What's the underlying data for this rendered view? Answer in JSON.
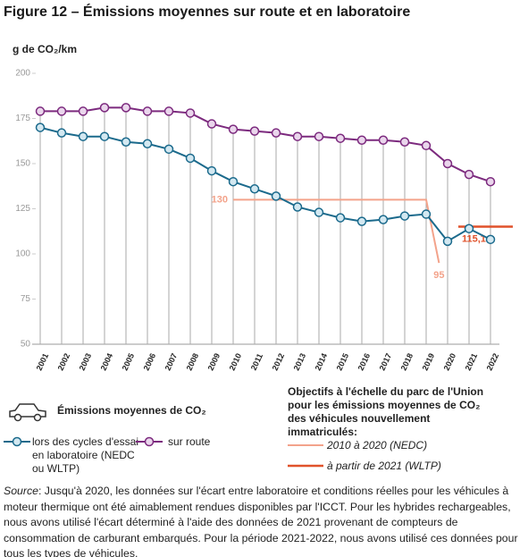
{
  "chart_data": {
    "type": "line",
    "title": "Figure 12 – Émissions moyennes sur route et en laboratoire",
    "y_label": "g de CO₂/km",
    "ylim": [
      50,
      200
    ],
    "yticks": [
      50,
      75,
      100,
      125,
      150,
      175,
      200
    ],
    "categories": [
      "2001",
      "2002",
      "2003",
      "2004",
      "2005",
      "2006",
      "2007",
      "2008",
      "2009",
      "2010",
      "2011",
      "2012",
      "2013",
      "2014",
      "2015",
      "2016",
      "2017",
      "2018",
      "2019",
      "2020",
      "2021",
      "2022"
    ],
    "legend_title": "Émissions moyennes de CO₂",
    "series": [
      {
        "name": "lors des cycles d'essai en laboratoire (NEDC ou WLTP)",
        "color": "#1b6a8c",
        "marker_fill": "#d3e8f1",
        "values": [
          170,
          167,
          165,
          165,
          162,
          161,
          158,
          153,
          146,
          140,
          136,
          132,
          126,
          123,
          120,
          118,
          119,
          121,
          122,
          107,
          114,
          108
        ]
      },
      {
        "name": "sur route",
        "color": "#7c2a7e",
        "marker_fill": "#ead6ec",
        "values": [
          179,
          179,
          179,
          181,
          181,
          179,
          179,
          178,
          172,
          169,
          168,
          167,
          165,
          165,
          164,
          163,
          163,
          162,
          160,
          150,
          144,
          140
        ]
      }
    ],
    "targets_title": "Objectifs à l'échelle du parc de l'Union pour les émissions moyennes de CO₂ des véhicules nouvellement immatriculés:",
    "targets": [
      {
        "name": "2010 à 2020 (NEDC)",
        "color": "#f3a38b",
        "from": "2010",
        "to": "2019",
        "values": [
          130,
          95
        ],
        "value_labels": [
          "130",
          "95"
        ]
      },
      {
        "name": "à partir de 2021 (WLTP)",
        "color": "#e0522b",
        "from": "2021",
        "to": "2022",
        "values": [
          115.1
        ],
        "value_labels": [
          "115,1"
        ]
      }
    ],
    "source_label": "Source",
    "source_text": ": Jusqu'à 2020, les données sur l'écart entre laboratoire et conditions réelles pour les véhicules à moteur thermique ont été aimablement rendues disponibles par l'ICCT. Pour les hybrides rechargeables, nous avons utilisé l'écart déterminé à l'aide des données de 2021 provenant de compteurs de consommation de carburant embarqués. Pour la période 2021-2022, nous avons utilisé ces données pour tous les types de véhicules."
  }
}
